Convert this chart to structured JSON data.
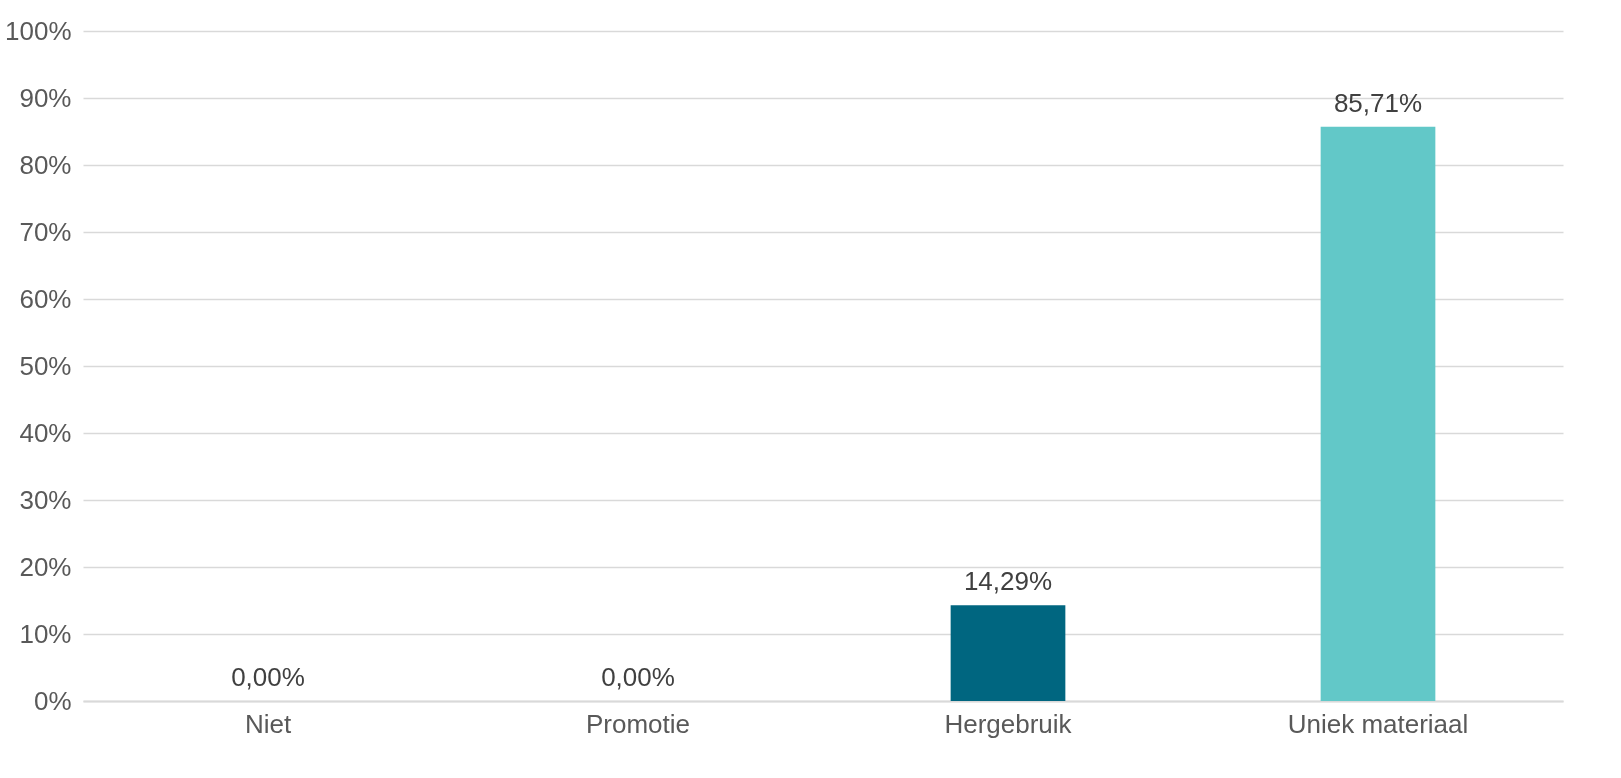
{
  "chart_data": {
    "type": "bar",
    "categories": [
      "Niet",
      "Promotie",
      "Hergebruik",
      "Uniek materiaal"
    ],
    "values": [
      0,
      0,
      14.29,
      85.71
    ],
    "value_labels": [
      "0,00%",
      "0,00%",
      "14,29%",
      "85,71%"
    ],
    "colors": [
      null,
      null,
      "#006680",
      "#62c8c8"
    ],
    "ylim": [
      0,
      100
    ],
    "yticks": [
      {
        "value": 0,
        "label": "0%"
      },
      {
        "value": 10,
        "label": "10%"
      },
      {
        "value": 20,
        "label": "20%"
      },
      {
        "value": 30,
        "label": "30%"
      },
      {
        "value": 40,
        "label": "40%"
      },
      {
        "value": 50,
        "label": "50%"
      },
      {
        "value": 60,
        "label": "60%"
      },
      {
        "value": 70,
        "label": "70%"
      },
      {
        "value": 80,
        "label": "80%"
      },
      {
        "value": 90,
        "label": "90%"
      },
      {
        "value": 100,
        "label": "100%"
      }
    ],
    "grid": "y"
  }
}
